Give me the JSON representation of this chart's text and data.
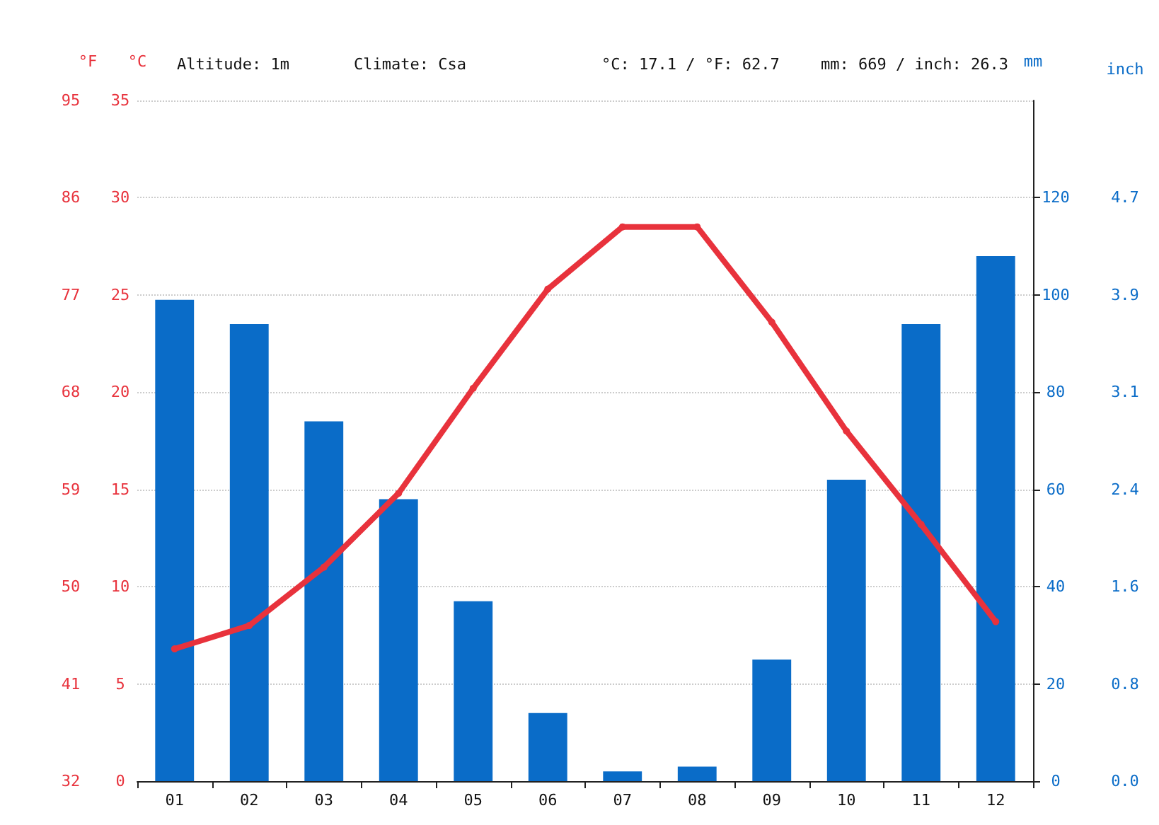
{
  "chart_data": {
    "type": "bar",
    "categories": [
      "01",
      "02",
      "03",
      "04",
      "05",
      "06",
      "07",
      "08",
      "09",
      "10",
      "11",
      "12"
    ],
    "series": [
      {
        "axis": "y2",
        "color": "#0a6cc8",
        "values": [
          99,
          94,
          74,
          58,
          37,
          14,
          2,
          3,
          25,
          62,
          94,
          108
        ]
      },
      {
        "type": "line",
        "axis": "y",
        "color": "#e8323c",
        "marker": "circle",
        "line_style": "solid",
        "values": [
          6.8,
          8.0,
          11.0,
          14.8,
          20.2,
          25.3,
          28.5,
          28.5,
          23.6,
          18.0,
          13.2,
          8.2
        ]
      }
    ],
    "ylabel": "°C",
    "ylim": [
      0,
      35
    ],
    "yticks": [
      0,
      5,
      10,
      15,
      20,
      25,
      30,
      35
    ],
    "y2label": "mm",
    "y2lim": [
      0,
      140
    ],
    "y2ticks": [
      0,
      20,
      40,
      60,
      80,
      100,
      120
    ],
    "y3label": "°F",
    "y3lim": [
      32,
      95
    ],
    "y3ticks": [
      32,
      41,
      50,
      59,
      68,
      77,
      86,
      95
    ],
    "annotations": [
      "Altitude: 1m",
      "Climate: Csa",
      "°C: 17.1 / °F: 62.7",
      "mm: 669 / inch: 26.3",
      "inch",
      "0.0",
      "0.8",
      "1.6",
      "2.4",
      "3.1",
      "3.9",
      "4.7"
    ],
    "grid": "y"
  }
}
